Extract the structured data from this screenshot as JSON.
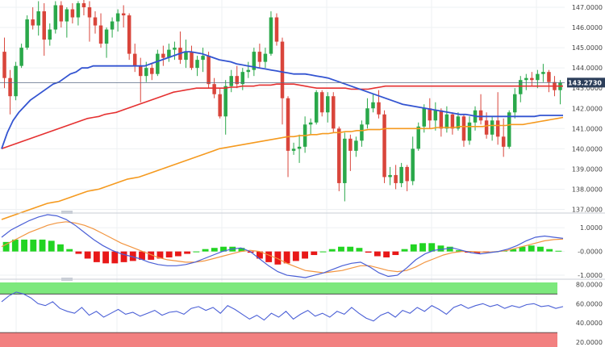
{
  "chart_data": [
    {
      "type": "candlestick",
      "panel": "price",
      "title": "",
      "y_ticks": [
        "147.0000",
        "146.0000",
        "145.0000",
        "144.0000",
        "143.0000",
        "142.0000",
        "141.0000",
        "140.0000",
        "139.0000",
        "138.0000",
        "137.0000"
      ],
      "ylim": [
        136.9,
        147.2
      ],
      "last_price_label": "143.2730",
      "last_price": 143.273,
      "colors": {
        "up": "#2aa84a",
        "down": "#d9453b",
        "ma_fast": "#3354d1",
        "ma_mid": "#e53030",
        "ma_slow": "#f59a1f",
        "last_line": "#5a6b85",
        "price_box": "#2c3e5a"
      },
      "candles": [
        [
          144.8,
          145.5,
          143.0,
          143.5
        ],
        [
          143.5,
          143.9,
          141.7,
          142.6
        ],
        [
          142.6,
          144.3,
          142.4,
          144.1
        ],
        [
          144.1,
          145.2,
          144.0,
          145.0
        ],
        [
          145.0,
          146.6,
          144.9,
          146.4
        ],
        [
          146.4,
          147.0,
          145.9,
          146.1
        ],
        [
          146.1,
          147.3,
          145.6,
          146.8
        ],
        [
          146.8,
          147.2,
          144.6,
          145.4
        ],
        [
          145.4,
          146.2,
          145.1,
          145.9
        ],
        [
          145.9,
          147.3,
          145.7,
          147.1
        ],
        [
          147.1,
          147.3,
          146.0,
          146.3
        ],
        [
          146.3,
          147.0,
          145.5,
          146.9
        ],
        [
          146.9,
          147.2,
          146.2,
          146.5
        ],
        [
          146.5,
          147.3,
          146.1,
          147.2
        ],
        [
          147.2,
          147.5,
          146.6,
          147.0
        ],
        [
          147.0,
          147.3,
          145.3,
          146.5
        ],
        [
          146.5,
          146.8,
          145.7,
          146.1
        ],
        [
          146.1,
          146.7,
          145.0,
          145.2
        ],
        [
          145.2,
          146.0,
          144.5,
          145.9
        ],
        [
          145.9,
          146.5,
          145.5,
          146.3
        ],
        [
          146.3,
          146.9,
          145.8,
          146.7
        ],
        [
          146.7,
          147.1,
          146.0,
          146.6
        ],
        [
          146.6,
          146.7,
          144.4,
          144.7
        ],
        [
          144.7,
          145.2,
          143.8,
          144.1
        ],
        [
          144.1,
          144.5,
          142.3,
          143.6
        ],
        [
          143.6,
          144.3,
          143.3,
          144.0
        ],
        [
          144.0,
          144.2,
          143.4,
          143.7
        ],
        [
          143.7,
          144.9,
          143.6,
          144.7
        ],
        [
          144.7,
          145.1,
          144.1,
          144.5
        ],
        [
          144.5,
          145.2,
          144.3,
          144.9
        ],
        [
          144.9,
          145.3,
          144.4,
          145.0
        ],
        [
          145.0,
          145.8,
          144.2,
          144.4
        ],
        [
          144.4,
          145.4,
          144.0,
          144.8
        ],
        [
          144.8,
          145.1,
          143.9,
          144.0
        ],
        [
          144.0,
          144.6,
          143.6,
          144.4
        ],
        [
          144.4,
          145.0,
          143.8,
          144.6
        ],
        [
          144.6,
          144.8,
          143.0,
          143.2
        ],
        [
          143.2,
          143.5,
          142.5,
          142.7
        ],
        [
          142.7,
          143.0,
          141.5,
          141.6
        ],
        [
          141.6,
          143.4,
          140.7,
          143.1
        ],
        [
          143.1,
          143.9,
          142.8,
          143.6
        ],
        [
          143.6,
          144.1,
          143.0,
          143.2
        ],
        [
          143.2,
          144.0,
          142.9,
          143.8
        ],
        [
          143.8,
          144.3,
          143.5,
          143.9
        ],
        [
          143.9,
          145.0,
          143.6,
          144.8
        ],
        [
          144.8,
          145.2,
          144.0,
          144.3
        ],
        [
          144.3,
          145.0,
          144.0,
          144.7
        ],
        [
          144.7,
          146.8,
          144.6,
          146.5
        ],
        [
          146.5,
          146.7,
          145.1,
          145.3
        ],
        [
          145.3,
          145.5,
          141.2,
          142.5
        ],
        [
          142.5,
          142.6,
          138.6,
          139.9
        ],
        [
          139.9,
          140.3,
          139.7,
          140.0
        ],
        [
          140.0,
          140.7,
          139.3,
          140.1
        ],
        [
          140.1,
          141.6,
          139.8,
          141.2
        ],
        [
          141.2,
          141.5,
          140.7,
          141.3
        ],
        [
          141.3,
          142.9,
          141.2,
          142.8
        ],
        [
          142.8,
          142.9,
          141.6,
          141.8
        ],
        [
          141.8,
          142.8,
          141.3,
          142.6
        ],
        [
          142.6,
          142.8,
          140.8,
          141.0
        ],
        [
          141.0,
          141.1,
          137.9,
          138.3
        ],
        [
          138.3,
          140.8,
          137.4,
          140.5
        ],
        [
          140.5,
          140.7,
          138.9,
          139.9
        ],
        [
          139.9,
          140.6,
          139.6,
          140.4
        ],
        [
          140.4,
          141.4,
          140.1,
          141.2
        ],
        [
          141.2,
          142.5,
          141.0,
          142.0
        ],
        [
          142.0,
          142.7,
          141.8,
          142.3
        ],
        [
          142.3,
          142.9,
          141.5,
          141.7
        ],
        [
          141.7,
          141.9,
          138.3,
          138.6
        ],
        [
          138.6,
          139.1,
          138.2,
          138.7
        ],
        [
          138.7,
          139.2,
          138.0,
          138.3
        ],
        [
          138.3,
          139.3,
          138.1,
          139.1
        ],
        [
          139.1,
          139.2,
          137.9,
          138.4
        ],
        [
          138.4,
          140.6,
          138.2,
          140.0
        ],
        [
          140.0,
          141.3,
          139.9,
          141.1
        ],
        [
          141.1,
          142.2,
          140.8,
          142.0
        ],
        [
          142.0,
          142.5,
          141.0,
          141.4
        ],
        [
          141.4,
          142.3,
          140.9,
          141.9
        ],
        [
          141.9,
          142.0,
          140.6,
          141.0
        ],
        [
          141.0,
          142.1,
          140.8,
          141.7
        ],
        [
          141.7,
          141.8,
          140.7,
          141.0
        ],
        [
          141.0,
          141.8,
          140.9,
          141.6
        ],
        [
          141.6,
          141.7,
          140.1,
          140.4
        ],
        [
          140.4,
          141.6,
          140.2,
          141.3
        ],
        [
          141.3,
          142.1,
          140.9,
          141.9
        ],
        [
          141.9,
          142.7,
          141.2,
          141.4
        ],
        [
          141.4,
          141.8,
          140.5,
          140.7
        ],
        [
          140.7,
          141.6,
          140.4,
          141.4
        ],
        [
          141.4,
          142.8,
          140.2,
          140.6
        ],
        [
          140.6,
          141.5,
          139.6,
          140.1
        ],
        [
          140.1,
          141.9,
          140.0,
          141.8
        ],
        [
          141.8,
          143.0,
          141.5,
          142.7
        ],
        [
          142.7,
          143.6,
          142.3,
          143.4
        ],
        [
          143.4,
          143.7,
          142.9,
          143.5
        ],
        [
          143.5,
          143.8,
          143.1,
          143.4
        ],
        [
          143.4,
          143.9,
          143.0,
          143.7
        ],
        [
          143.7,
          144.2,
          143.3,
          143.8
        ],
        [
          143.8,
          143.9,
          142.8,
          143.3
        ],
        [
          143.3,
          143.6,
          142.6,
          142.9
        ],
        [
          142.9,
          143.4,
          142.2,
          143.27
        ]
      ],
      "ma_fast": [
        140.0,
        140.8,
        141.4,
        141.8,
        142.1,
        142.4,
        142.6,
        142.8,
        143.0,
        143.2,
        143.3,
        143.5,
        143.7,
        143.8,
        144.0,
        144.0,
        144.1,
        144.1,
        144.1,
        144.1,
        144.1,
        144.1,
        144.1,
        144.1,
        144.1,
        144.1,
        144.2,
        144.3,
        144.4,
        144.5,
        144.6,
        144.7,
        144.8,
        144.8,
        144.75,
        144.7,
        144.6,
        144.5,
        144.4,
        144.35,
        144.3,
        144.2,
        144.15,
        144.1,
        144.05,
        144.0,
        143.95,
        143.9,
        143.85,
        143.8,
        143.75,
        143.7,
        143.7,
        143.7,
        143.65,
        143.6,
        143.55,
        143.5,
        143.4,
        143.3,
        143.2,
        143.1,
        143.0,
        142.9,
        142.8,
        142.7,
        142.6,
        142.5,
        142.4,
        142.3,
        142.2,
        142.15,
        142.1,
        142.05,
        142.0,
        141.95,
        141.9,
        141.85,
        141.8,
        141.75,
        141.7,
        141.7,
        141.65,
        141.6,
        141.6,
        141.6,
        141.6,
        141.6,
        141.6,
        141.6,
        141.6,
        141.6,
        141.6,
        141.6,
        141.65,
        141.65,
        141.65,
        141.65,
        141.65
      ],
      "ma_mid": [
        140.0,
        140.1,
        140.2,
        140.3,
        140.4,
        140.5,
        140.6,
        140.7,
        140.8,
        140.9,
        141.0,
        141.1,
        141.2,
        141.3,
        141.4,
        141.5,
        141.55,
        141.6,
        141.7,
        141.75,
        141.8,
        141.9,
        142.0,
        142.1,
        142.2,
        142.3,
        142.4,
        142.5,
        142.6,
        142.7,
        142.8,
        142.85,
        142.9,
        142.95,
        143.0,
        143.0,
        143.0,
        143.0,
        143.0,
        143.0,
        143.05,
        143.05,
        143.1,
        143.1,
        143.1,
        143.15,
        143.15,
        143.15,
        143.2,
        143.2,
        143.2,
        143.2,
        143.15,
        143.1,
        143.05,
        143.0,
        143.0,
        143.0,
        143.0,
        143.0,
        143.0,
        142.95,
        142.95,
        142.95,
        142.95,
        143.0,
        143.05,
        143.1,
        143.1,
        143.1,
        143.1,
        143.1,
        143.1,
        143.1,
        143.1,
        143.1,
        143.1,
        143.1,
        143.1,
        143.1,
        143.1,
        143.1,
        143.1,
        143.1,
        143.1,
        143.1,
        143.1,
        143.1,
        143.1,
        143.1,
        143.1,
        143.1,
        143.1,
        143.1,
        143.1,
        143.1,
        143.1,
        143.1,
        143.1
      ],
      "ma_slow": [
        136.5,
        136.6,
        136.7,
        136.8,
        136.9,
        137.0,
        137.1,
        137.2,
        137.3,
        137.35,
        137.4,
        137.5,
        137.6,
        137.7,
        137.8,
        137.9,
        137.95,
        138.0,
        138.1,
        138.2,
        138.3,
        138.4,
        138.5,
        138.55,
        138.6,
        138.7,
        138.8,
        138.9,
        139.0,
        139.1,
        139.2,
        139.3,
        139.4,
        139.5,
        139.6,
        139.7,
        139.8,
        139.9,
        140.0,
        140.05,
        140.1,
        140.15,
        140.2,
        140.25,
        140.3,
        140.35,
        140.4,
        140.45,
        140.5,
        140.55,
        140.6,
        140.6,
        140.65,
        140.65,
        140.7,
        140.7,
        140.75,
        140.75,
        140.8,
        140.8,
        140.85,
        140.85,
        140.9,
        140.9,
        140.95,
        140.95,
        140.95,
        141.0,
        141.0,
        141.0,
        141.0,
        141.0,
        141.0,
        141.0,
        141.0,
        141.0,
        141.05,
        141.05,
        141.05,
        141.05,
        141.1,
        141.1,
        141.1,
        141.1,
        141.1,
        141.15,
        141.15,
        141.15,
        141.15,
        141.2,
        141.2,
        141.2,
        141.25,
        141.3,
        141.35,
        141.4,
        141.45,
        141.5,
        141.55
      ]
    },
    {
      "type": "macd",
      "panel": "macd",
      "y_ticks": [
        "1.0000",
        "-0.0000",
        "-1.0000"
      ],
      "ylim": [
        -1.1,
        1.55
      ],
      "colors": {
        "hist_pos": "#22d422",
        "hist_neg": "#e81818",
        "macd": "#4a5fd6",
        "signal": "#f29540"
      },
      "macd": [
        0.6,
        0.9,
        1.1,
        1.3,
        1.45,
        1.55,
        1.5,
        1.35,
        1.1,
        0.8,
        0.5,
        0.25,
        0.05,
        -0.1,
        -0.2,
        -0.3,
        -0.45,
        -0.55,
        -0.6,
        -0.6,
        -0.55,
        -0.45,
        -0.3,
        -0.15,
        0.0,
        0.1,
        0.15,
        0.0,
        -0.3,
        -0.6,
        -0.85,
        -1.0,
        -1.05,
        -1.1,
        -1.0,
        -0.9,
        -0.75,
        -0.6,
        -0.5,
        -0.45,
        -0.65,
        -0.9,
        -1.05,
        -1.0,
        -0.7,
        -0.35,
        -0.1,
        0.05,
        0.1,
        0.15,
        0.05,
        -0.05,
        -0.1,
        -0.05,
        0.0,
        0.1,
        0.25,
        0.45,
        0.6,
        0.65,
        0.6,
        0.55
      ],
      "signal": [
        0.2,
        0.4,
        0.6,
        0.8,
        0.95,
        1.1,
        1.2,
        1.25,
        1.2,
        1.1,
        0.95,
        0.75,
        0.55,
        0.35,
        0.2,
        0.05,
        -0.1,
        -0.25,
        -0.35,
        -0.4,
        -0.45,
        -0.45,
        -0.4,
        -0.3,
        -0.2,
        -0.1,
        0.0,
        0.05,
        0.0,
        -0.15,
        -0.3,
        -0.5,
        -0.65,
        -0.8,
        -0.85,
        -0.9,
        -0.85,
        -0.8,
        -0.7,
        -0.6,
        -0.6,
        -0.7,
        -0.8,
        -0.85,
        -0.8,
        -0.65,
        -0.45,
        -0.3,
        -0.15,
        -0.05,
        0.0,
        0.0,
        -0.02,
        -0.03,
        0.0,
        0.05,
        0.15,
        0.25,
        0.35,
        0.45,
        0.5,
        0.52
      ],
      "hist": [
        0.4,
        0.5,
        0.5,
        0.5,
        0.5,
        0.45,
        0.3,
        0.1,
        -0.1,
        -0.3,
        -0.45,
        -0.5,
        -0.5,
        -0.45,
        -0.4,
        -0.35,
        -0.35,
        -0.3,
        -0.25,
        -0.2,
        -0.1,
        0.0,
        0.1,
        0.15,
        0.2,
        0.2,
        0.15,
        -0.05,
        -0.3,
        -0.45,
        -0.55,
        -0.5,
        -0.4,
        -0.3,
        -0.15,
        0.0,
        0.1,
        0.2,
        0.2,
        0.15,
        -0.05,
        -0.2,
        -0.25,
        -0.15,
        0.1,
        0.3,
        0.35,
        0.35,
        0.25,
        0.2,
        0.05,
        -0.05,
        -0.08,
        -0.02,
        0.0,
        0.05,
        0.1,
        0.2,
        0.25,
        0.2,
        0.1,
        0.03
      ]
    },
    {
      "type": "line",
      "panel": "rsi",
      "y_ticks": [
        "80.0000",
        "60.0000",
        "40.0000",
        "20.0000"
      ],
      "ylim": [
        15,
        82
      ],
      "overbought": 70,
      "oversold": 30,
      "colors": {
        "line": "#4a5fd6",
        "overbought_band": "#7de87d",
        "oversold_band": "#f28080"
      },
      "values": [
        62,
        68,
        72,
        70,
        66,
        60,
        58,
        62,
        55,
        52,
        50,
        56,
        48,
        52,
        46,
        50,
        54,
        49,
        51,
        47,
        50,
        53,
        48,
        51,
        52,
        49,
        55,
        57,
        53,
        56,
        50,
        58,
        54,
        49,
        44,
        48,
        43,
        50,
        46,
        52,
        44,
        49,
        53,
        47,
        50,
        46,
        52,
        49,
        56,
        50,
        45,
        42,
        48,
        51,
        46,
        53,
        50,
        56,
        52,
        58,
        54,
        49,
        56,
        59,
        55,
        58,
        60,
        57,
        59,
        55,
        58,
        56,
        59,
        60,
        57,
        58,
        55,
        57
      ]
    }
  ]
}
